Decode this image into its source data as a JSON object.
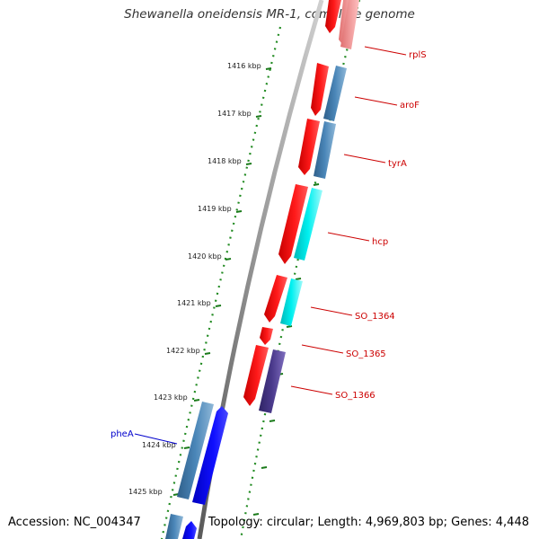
{
  "title": "Shewanella oneidensis MR-1, complete genome",
  "footer": {
    "accession": "Accession: NC_004347",
    "summary": "Topology: circular; Length: 4,969,803 bp; Genes: 4,448"
  },
  "ruler": {
    "ticks": [
      "1416 kbp",
      "1417 kbp",
      "1418 kbp",
      "1419 kbp",
      "1420 kbp",
      "1421 kbp",
      "1422 kbp",
      "1423 kbp",
      "1424 kbp",
      "1425 kbp"
    ]
  },
  "genes": [
    {
      "name": "rplS",
      "strand": "reverse",
      "label_color": "#cc0000"
    },
    {
      "name": "aroF",
      "strand": "reverse",
      "label_color": "#cc0000"
    },
    {
      "name": "tyrA",
      "strand": "reverse",
      "label_color": "#cc0000"
    },
    {
      "name": "hcp",
      "strand": "reverse",
      "label_color": "#cc0000"
    },
    {
      "name": "SO_1364",
      "strand": "reverse",
      "label_color": "#cc0000"
    },
    {
      "name": "SO_1365",
      "strand": "reverse",
      "label_color": "#cc0000"
    },
    {
      "name": "SO_1366",
      "strand": "reverse",
      "label_color": "#cc0000"
    },
    {
      "name": "pheA",
      "strand": "forward",
      "label_color": "#0000cc"
    }
  ],
  "colors": {
    "reverse_cds": "#ff0000",
    "forward_cds": "#0000ee",
    "rna_light": "#f28c8c",
    "blast_steel": "#4682b4",
    "blast_cyan": "#00e5e5",
    "blast_purple": "#4b3a8c",
    "ruler_dots": "#228b22",
    "backbone": "#888888"
  }
}
